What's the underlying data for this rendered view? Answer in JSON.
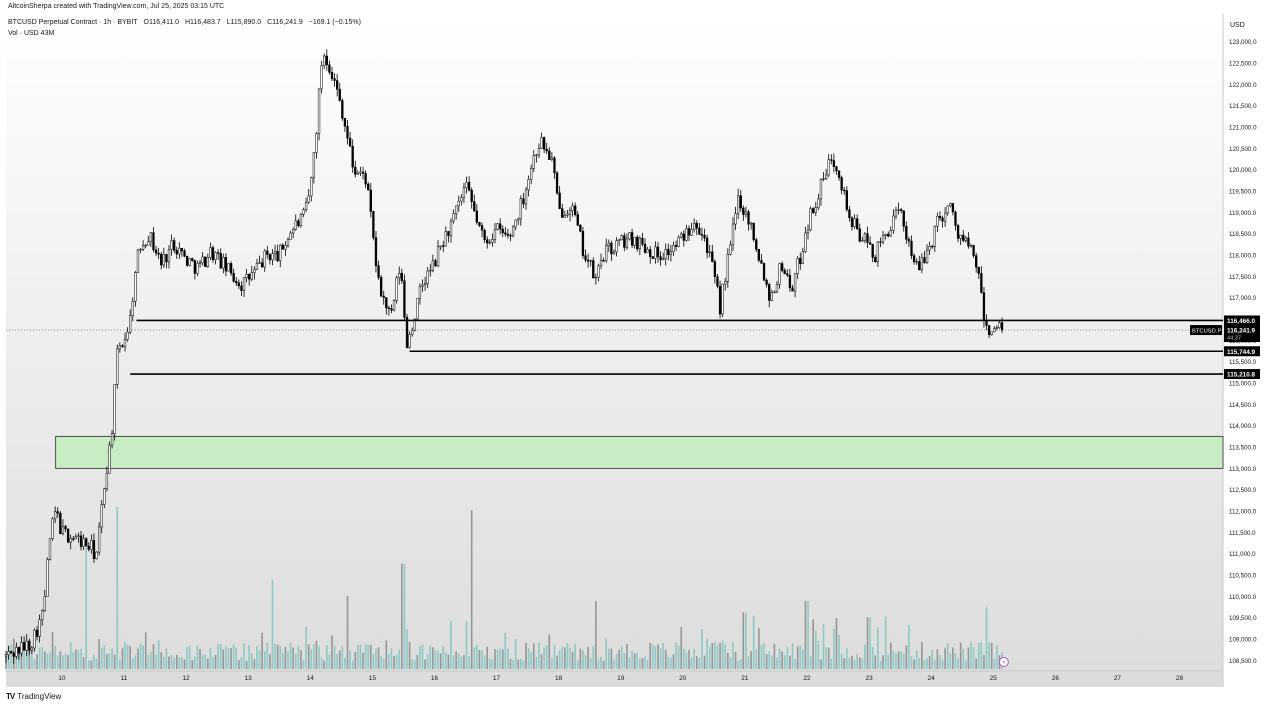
{
  "credit": "AltcoinSherpa created with TradingView.com, Jul 25, 2025 03:15 UTC",
  "header": {
    "symbol_line": "BTCUSD Perpetual Contract · 1h · BYBIT",
    "open": "O116,411.0",
    "high": "H116,483.7",
    "low": "L115,890.0",
    "close": "C116,241.9",
    "change": "−169.1 (−0.15%)",
    "volume_line": "Vol · USD  43M"
  },
  "currency": "USD",
  "footer": {
    "logo_text": "TradingView"
  },
  "colors": {
    "background_top": "#ffffff",
    "background_bottom": "#dddddd",
    "candle": "#000000",
    "volume_teal": "#7ec4c2",
    "volume_grey": "#888888",
    "zone_fill": "#c8ecc4",
    "zone_border": "#2a2a2a",
    "price_tag_bg": "#000000",
    "price_tag_text": "#ffffff"
  },
  "chart_data": {
    "type": "candlestick",
    "symbol": "BTCUSD Perpetual Contract",
    "interval": "1h",
    "exchange": "BYBIT",
    "ylim": [
      108250,
      123650
    ],
    "y_ticks": [
      "123,000.0",
      "122,500.0",
      "122,000.0",
      "121,500.0",
      "121,000.0",
      "120,500.0",
      "120,000.0",
      "119,500.0",
      "119,000.0",
      "118,500.0",
      "118,000.0",
      "117,500.0",
      "117,000.0",
      "116,500.0",
      "116,000.0",
      "115,500.0",
      "115,000.0",
      "114,500.0",
      "114,000.0",
      "113,500.0",
      "113,000.0",
      "112,500.0",
      "112,000.0",
      "111,500.0",
      "111,000.0",
      "110,500.0",
      "110,000.0",
      "109,500.0",
      "109,000.0",
      "108,500.0"
    ],
    "x_ticks": [
      "10",
      "11",
      "12",
      "13",
      "14",
      "15",
      "16",
      "17",
      "18",
      "19",
      "20",
      "21",
      "22",
      "23",
      "24",
      "25",
      "26",
      "27",
      "28"
    ],
    "x_range_days": [
      9.1,
      28.7
    ],
    "last_bar_day": 25.17,
    "path": [
      [
        9.1,
        108600
      ],
      [
        9.5,
        108900
      ],
      [
        9.7,
        109600
      ],
      [
        9.8,
        111300
      ],
      [
        9.9,
        112000
      ],
      [
        10.0,
        111500
      ],
      [
        10.3,
        111300
      ],
      [
        10.5,
        111100
      ],
      [
        10.55,
        110900
      ],
      [
        10.6,
        111500
      ],
      [
        10.7,
        112800
      ],
      [
        10.8,
        113800
      ],
      [
        10.9,
        115800
      ],
      [
        11.0,
        116000
      ],
      [
        11.1,
        116500
      ],
      [
        11.15,
        117200
      ],
      [
        11.25,
        118200
      ],
      [
        11.4,
        118500
      ],
      [
        11.6,
        117800
      ],
      [
        11.8,
        118300
      ],
      [
        12.0,
        117900
      ],
      [
        12.2,
        117700
      ],
      [
        12.4,
        118100
      ],
      [
        12.7,
        117600
      ],
      [
        12.9,
        117300
      ],
      [
        13.1,
        117600
      ],
      [
        13.3,
        118000
      ],
      [
        13.5,
        118000
      ],
      [
        13.7,
        118600
      ],
      [
        13.9,
        118900
      ],
      [
        14.0,
        119500
      ],
      [
        14.1,
        121000
      ],
      [
        14.2,
        122800
      ],
      [
        14.3,
        122500
      ],
      [
        14.5,
        121500
      ],
      [
        14.7,
        120000
      ],
      [
        14.9,
        119800
      ],
      [
        15.1,
        117300
      ],
      [
        15.3,
        116500
      ],
      [
        15.45,
        117800
      ],
      [
        15.55,
        115900
      ],
      [
        15.65,
        116400
      ],
      [
        15.8,
        117300
      ],
      [
        16.0,
        117800
      ],
      [
        16.1,
        118200
      ],
      [
        16.3,
        118800
      ],
      [
        16.5,
        119600
      ],
      [
        16.6,
        119200
      ],
      [
        16.8,
        118300
      ],
      [
        17.0,
        118600
      ],
      [
        17.2,
        118400
      ],
      [
        17.4,
        119200
      ],
      [
        17.6,
        120300
      ],
      [
        17.7,
        120700
      ],
      [
        17.9,
        120200
      ],
      [
        18.0,
        119000
      ],
      [
        18.2,
        119200
      ],
      [
        18.4,
        118100
      ],
      [
        18.6,
        117400
      ],
      [
        18.7,
        118000
      ],
      [
        19.0,
        118300
      ],
      [
        19.2,
        118400
      ],
      [
        19.4,
        118200
      ],
      [
        19.6,
        118000
      ],
      [
        19.8,
        118100
      ],
      [
        20.0,
        118400
      ],
      [
        20.2,
        118900
      ],
      [
        20.4,
        118200
      ],
      [
        20.6,
        116800
      ],
      [
        20.8,
        118500
      ],
      [
        20.9,
        119400
      ],
      [
        21.0,
        119000
      ],
      [
        21.1,
        118700
      ],
      [
        21.3,
        117600
      ],
      [
        21.4,
        117000
      ],
      [
        21.6,
        117800
      ],
      [
        21.75,
        117200
      ],
      [
        21.9,
        118000
      ],
      [
        22.0,
        118700
      ],
      [
        22.2,
        119500
      ],
      [
        22.4,
        120300
      ],
      [
        22.5,
        120100
      ],
      [
        22.6,
        119400
      ],
      [
        22.7,
        118800
      ],
      [
        22.9,
        118400
      ],
      [
        23.1,
        118000
      ],
      [
        23.3,
        118600
      ],
      [
        23.5,
        119000
      ],
      [
        23.6,
        118500
      ],
      [
        23.8,
        117600
      ],
      [
        24.0,
        118300
      ],
      [
        24.1,
        118800
      ],
      [
        24.3,
        119200
      ],
      [
        24.4,
        118600
      ],
      [
        24.6,
        118200
      ],
      [
        24.75,
        117700
      ],
      [
        24.85,
        116500
      ],
      [
        24.9,
        116241.9
      ]
    ],
    "volume": {
      "description": "hourly volume histogram, bars teal/grey",
      "peaks": [
        [
          10.4,
          0.75
        ],
        [
          10.9,
          1.0
        ],
        [
          13.4,
          0.55
        ],
        [
          14.6,
          0.45
        ],
        [
          15.5,
          0.65
        ],
        [
          16.6,
          0.98
        ],
        [
          18.6,
          0.42
        ],
        [
          21.0,
          0.35
        ],
        [
          22.0,
          0.42
        ],
        [
          23.0,
          0.32
        ],
        [
          24.9,
          0.38
        ]
      ]
    },
    "horizontal_levels": [
      {
        "price": 116466.0,
        "label": "116,466.0",
        "from_day": 11.2
      },
      {
        "price": 115744.9,
        "label": "115,744.9",
        "from_day": 15.6
      },
      {
        "price": 115210.8,
        "label": "115,210.8",
        "from_day": 11.1
      }
    ],
    "zones": [
      {
        "from_price": 113000,
        "to_price": 113750,
        "from_day": 9.9
      }
    ],
    "last_price": {
      "label_symbol": "BTCUSD.P",
      "price": "116,241.9",
      "countdown": "44:37",
      "value": 116241.9
    }
  }
}
